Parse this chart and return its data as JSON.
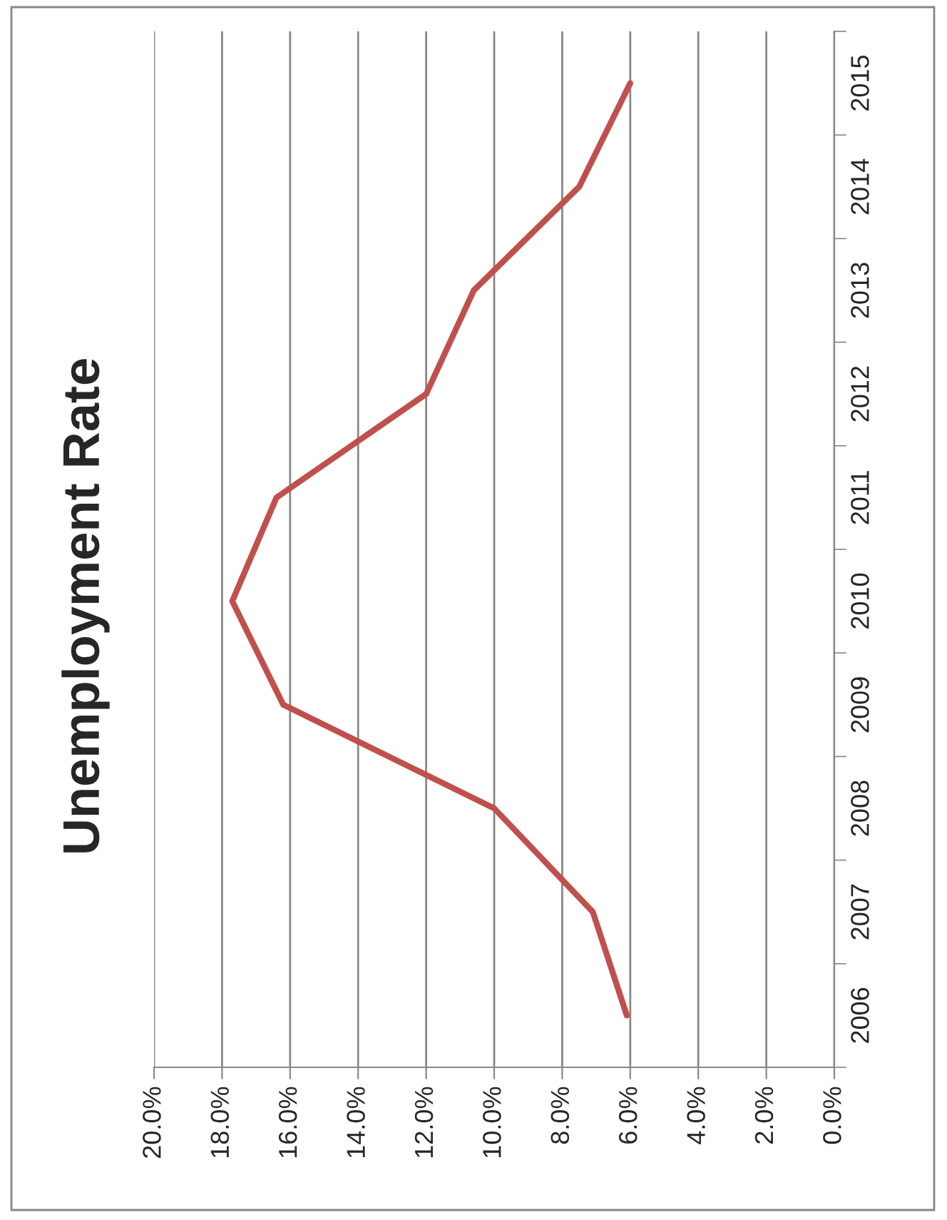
{
  "chart_data": {
    "type": "line",
    "title": "Unemployment Rate",
    "orientation": "horizontal",
    "categories": [
      "2015",
      "2014",
      "2013",
      "2012",
      "2011",
      "2010",
      "2009",
      "2008",
      "2007",
      "2006"
    ],
    "series": [
      {
        "color": "#c0504d",
        "values": [
          6.0,
          7.5,
          10.6,
          12.0,
          16.4,
          17.7,
          16.2,
          10.0,
          7.1,
          6.1
        ]
      }
    ],
    "xlim": [
      20,
      0
    ],
    "xticks": [
      {
        "value": 20,
        "label": "20.0%"
      },
      {
        "value": 18,
        "label": "18.0%"
      },
      {
        "value": 16,
        "label": "16.0%"
      },
      {
        "value": 14,
        "label": "14.0%"
      },
      {
        "value": 12,
        "label": "12.0%"
      },
      {
        "value": 10,
        "label": "10.0%"
      },
      {
        "value": 8,
        "label": "8.0%"
      },
      {
        "value": 6,
        "label": "6.0%"
      },
      {
        "value": 4,
        "label": "4.0%"
      },
      {
        "value": 2,
        "label": "2.0%"
      },
      {
        "value": 0,
        "label": "0.0%"
      }
    ],
    "grid": "x",
    "legend": false,
    "marker": "none",
    "line_style": "solid"
  }
}
